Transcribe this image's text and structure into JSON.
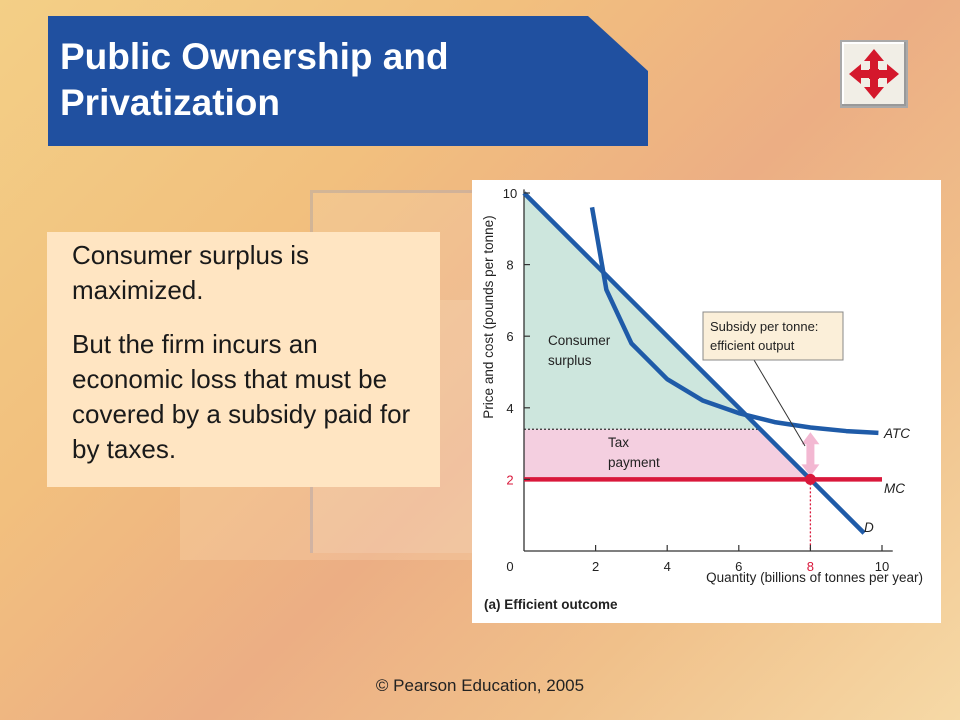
{
  "slide": {
    "title": "Public Ownership and Privatization",
    "bullets": [
      "Consumer surplus is maximized.",
      "But the firm incurs an economic loss that must be covered by a subsidy paid for by taxes."
    ],
    "footer": "© Pearson Education, 2005",
    "nav_icon": "four-way-arrows-icon"
  },
  "colors": {
    "title_bg": "#2050a0",
    "curve_blue": "#1f5ba8",
    "mc_red": "#d9183b",
    "consumer_surplus_fill": "#cde6dd",
    "tax_payment_fill": "#f4cfe0"
  },
  "chart_data": {
    "type": "line",
    "caption": "(a) Efficient outcome",
    "xlabel": "Quantity (billions of tonnes per year)",
    "ylabel": "Price and cost (pounds per tonne)",
    "xlim": [
      0,
      10
    ],
    "ylim": [
      0,
      10
    ],
    "xticks": [
      "0",
      "2",
      "4",
      "6",
      "8",
      "10"
    ],
    "yticks": [
      "2",
      "4",
      "6",
      "8",
      "10"
    ],
    "highlight_xtick": "8",
    "highlight_ytick": "2",
    "series": [
      {
        "name": "D",
        "points": [
          [
            0,
            10
          ],
          [
            9.5,
            0.5
          ]
        ]
      },
      {
        "name": "ATC",
        "points": [
          [
            1.9,
            9.6
          ],
          [
            2.3,
            7.3
          ],
          [
            3,
            5.8
          ],
          [
            4,
            4.8
          ],
          [
            5,
            4.2
          ],
          [
            6,
            3.85
          ],
          [
            7,
            3.6
          ],
          [
            8,
            3.45
          ],
          [
            9,
            3.35
          ],
          [
            9.9,
            3.3
          ]
        ]
      },
      {
        "name": "MC",
        "points": [
          [
            0,
            2
          ],
          [
            10,
            2
          ]
        ]
      }
    ],
    "areas": [
      {
        "label": "Consumer surplus",
        "polygon": [
          [
            0,
            10
          ],
          [
            0,
            3.4
          ],
          [
            6.6,
            3.4
          ]
        ]
      },
      {
        "label": "Tax payment",
        "polygon": [
          [
            0,
            3.4
          ],
          [
            6.6,
            3.4
          ],
          [
            8,
            2
          ],
          [
            0,
            2
          ]
        ]
      }
    ],
    "efficient_point": {
      "x": 8,
      "y": 2
    },
    "atc_at_efficient": 3.4,
    "annotation": "Subsidy per tonne: efficient output"
  }
}
